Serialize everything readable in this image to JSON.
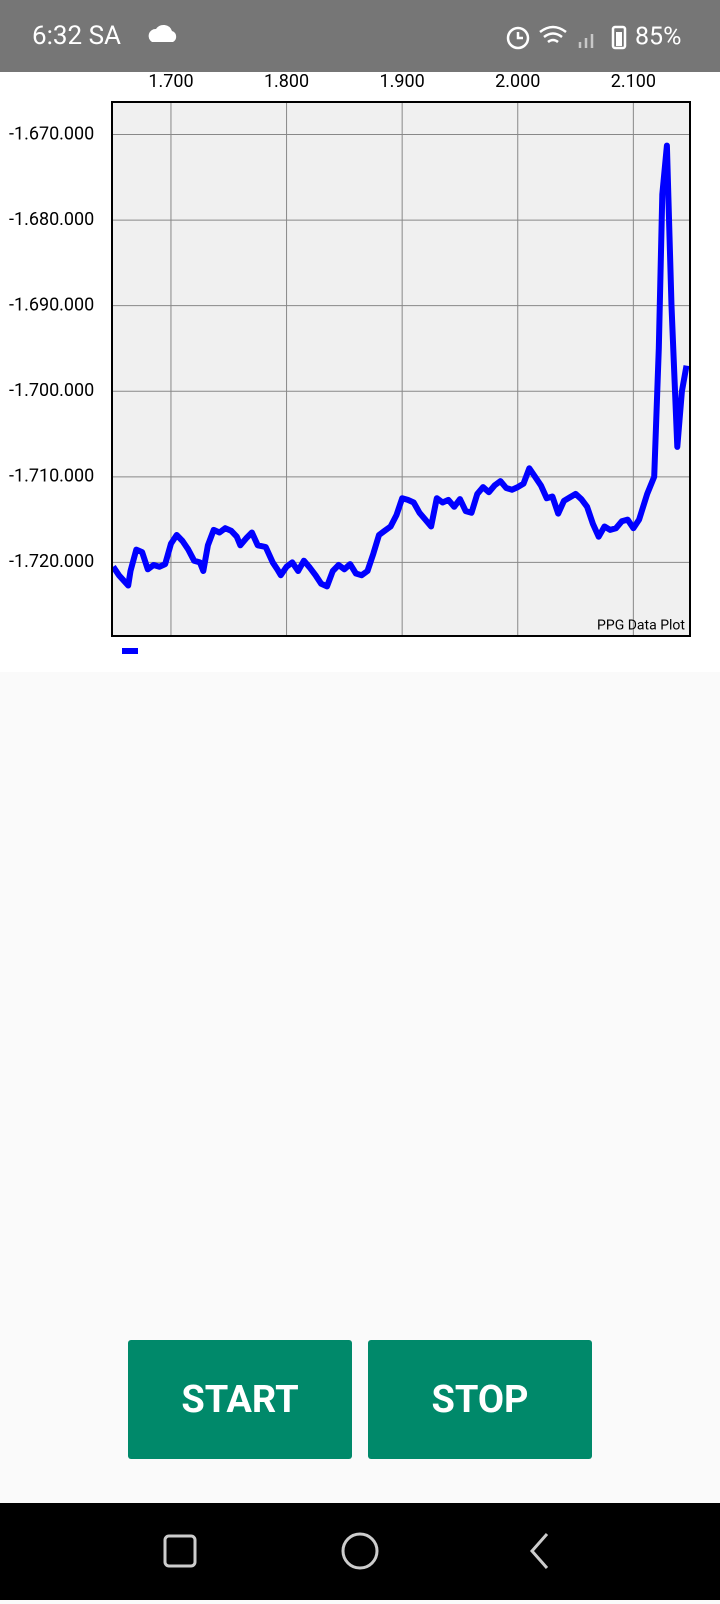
{
  "status_bar": {
    "time": "6:32 SA",
    "battery": "85%"
  },
  "chart_data": {
    "type": "line",
    "annotation": "PPG Data Plot",
    "x": [
      1650,
      1655,
      1663,
      1665,
      1670,
      1675,
      1680,
      1685,
      1690,
      1695,
      1700,
      1705,
      1710,
      1715,
      1720,
      1725,
      1728,
      1732,
      1737,
      1742,
      1747,
      1752,
      1757,
      1760,
      1765,
      1770,
      1775,
      1782,
      1788,
      1792,
      1795,
      1800,
      1805,
      1810,
      1815,
      1820,
      1825,
      1830,
      1835,
      1840,
      1845,
      1850,
      1855,
      1860,
      1865,
      1870,
      1875,
      1880,
      1885,
      1890,
      1895,
      1900,
      1905,
      1910,
      1915,
      1920,
      1925,
      1930,
      1935,
      1940,
      1945,
      1950,
      1955,
      1960,
      1965,
      1970,
      1975,
      1980,
      1985,
      1990,
      1995,
      2000,
      2005,
      2010,
      2015,
      2020,
      2025,
      2030,
      2035,
      2040,
      2045,
      2050,
      2055,
      2060,
      2065,
      2070,
      2075,
      2080,
      2085,
      2090,
      2095,
      2100,
      2105,
      2112,
      2118,
      2122,
      2125,
      2129,
      2133,
      2138,
      2142,
      2146
    ],
    "series": [
      {
        "color": "#0000ff",
        "values": [
          -1720500,
          -1721500,
          -1722700,
          -1721000,
          -1718500,
          -1718800,
          -1720800,
          -1720300,
          -1720500,
          -1720200,
          -1717800,
          -1716800,
          -1717500,
          -1718500,
          -1719800,
          -1720000,
          -1721000,
          -1718000,
          -1716200,
          -1716500,
          -1716000,
          -1716300,
          -1717000,
          -1718000,
          -1717200,
          -1716500,
          -1718000,
          -1718200,
          -1720000,
          -1720800,
          -1721500,
          -1720500,
          -1720000,
          -1721000,
          -1719800,
          -1720600,
          -1721500,
          -1722500,
          -1722800,
          -1721000,
          -1720300,
          -1720800,
          -1720200,
          -1721300,
          -1721500,
          -1721000,
          -1719000,
          -1716800,
          -1716300,
          -1715800,
          -1714500,
          -1712500,
          -1712700,
          -1713000,
          -1714200,
          -1715000,
          -1715800,
          -1712500,
          -1713000,
          -1712700,
          -1713500,
          -1712600,
          -1714000,
          -1714200,
          -1712000,
          -1711200,
          -1711800,
          -1711000,
          -1710500,
          -1711300,
          -1711500,
          -1711200,
          -1710800,
          -1709000,
          -1710000,
          -1711000,
          -1712500,
          -1712300,
          -1714300,
          -1712800,
          -1712400,
          -1712000,
          -1712600,
          -1713500,
          -1715500,
          -1717000,
          -1715800,
          -1716200,
          -1716000,
          -1715200,
          -1715000,
          -1716000,
          -1715000,
          -1712000,
          -1710000,
          -1695000,
          -1677000,
          -1671300,
          -1690000,
          -1706500,
          -1700000,
          -1697000
        ]
      }
    ],
    "xlim": [
      1649,
      2149
    ],
    "ylim": [
      -1728600,
      -1666200
    ],
    "xticks": [
      {
        "value": 1700,
        "label": "1.700"
      },
      {
        "value": 1800,
        "label": "1.800"
      },
      {
        "value": 1900,
        "label": "1.900"
      },
      {
        "value": 2000,
        "label": "2.000"
      },
      {
        "value": 2100,
        "label": "2.100"
      }
    ],
    "yticks": [
      {
        "value": -1670000,
        "label": "-1.670.000"
      },
      {
        "value": -1680000,
        "label": "-1.680.000"
      },
      {
        "value": -1690000,
        "label": "-1.690.000"
      },
      {
        "value": -1700000,
        "label": "-1.700.000"
      },
      {
        "value": -1710000,
        "label": "-1.710.000"
      },
      {
        "value": -1720000,
        "label": "-1.720.000"
      }
    ],
    "grid": true,
    "legend": "bottom-left"
  },
  "buttons": [
    "START",
    "STOP"
  ]
}
